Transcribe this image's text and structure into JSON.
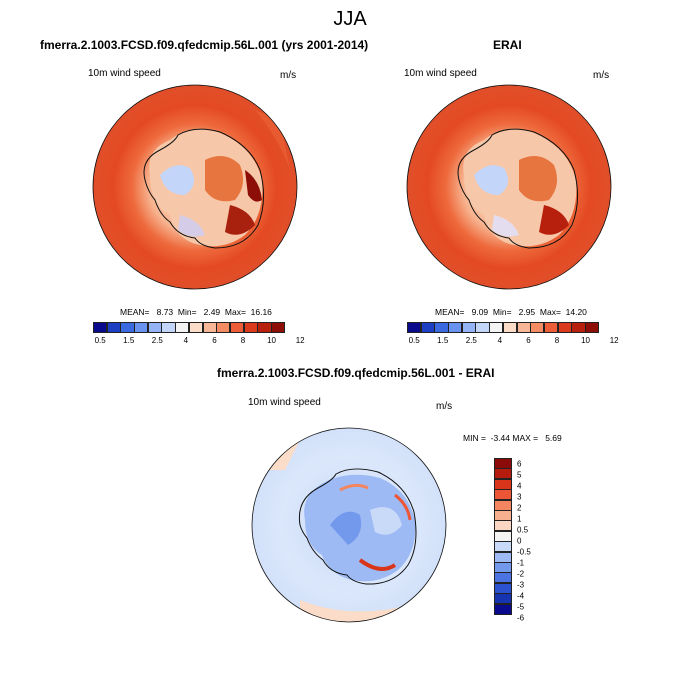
{
  "page_title": "JJA",
  "panels": [
    {
      "title": "fmerra.2.1003.FCSD.f09.qfedcmip.56L.001 (yrs 2001-2014)",
      "variable": "10m wind speed",
      "units": "m/s",
      "stats": "MEAN=   8.73  Min=   2.49  Max=  16.16"
    },
    {
      "title": "ERAI",
      "variable": "10m wind speed",
      "units": "m/s",
      "stats": "MEAN=   9.09  Min=   2.95  Max=  14.20"
    },
    {
      "title": "fmerra.2.1003.FCSD.f09.qfedcmip.56L.001 - ERAI",
      "variable": "10m wind speed",
      "units": "m/s",
      "stats": "MIN =  -3.44 MAX =   5.69"
    }
  ],
  "colorbar_abs": {
    "colors": [
      "#0a0a8c",
      "#1c3fc4",
      "#3b6ae0",
      "#6a92ef",
      "#95b4f5",
      "#c3d6fa",
      "#f4f4f4",
      "#fbdcc8",
      "#f7b796",
      "#f38c63",
      "#ec5d38",
      "#dc3a1c",
      "#b8200e",
      "#8c0e06"
    ],
    "labels": [
      "0.5",
      "1.5",
      "2.5",
      "4",
      "6",
      "8",
      "10",
      "12"
    ]
  },
  "colorbar_diff": {
    "colors": [
      "#8b0a0a",
      "#b51c0e",
      "#d8351b",
      "#ec5636",
      "#f38660",
      "#f7b08f",
      "#fbd6c3",
      "#f4f4f4",
      "#c9daf9",
      "#9dbaf4",
      "#7399ec",
      "#4b74e2",
      "#2c52d0",
      "#1633b0",
      "#0a0a8c"
    ],
    "labels": [
      "6",
      "5",
      "4",
      "3",
      "2",
      "1",
      "0.5",
      "0",
      "-0.5",
      "-1",
      "-2",
      "-3",
      "-4",
      "-5",
      "-6"
    ]
  }
}
